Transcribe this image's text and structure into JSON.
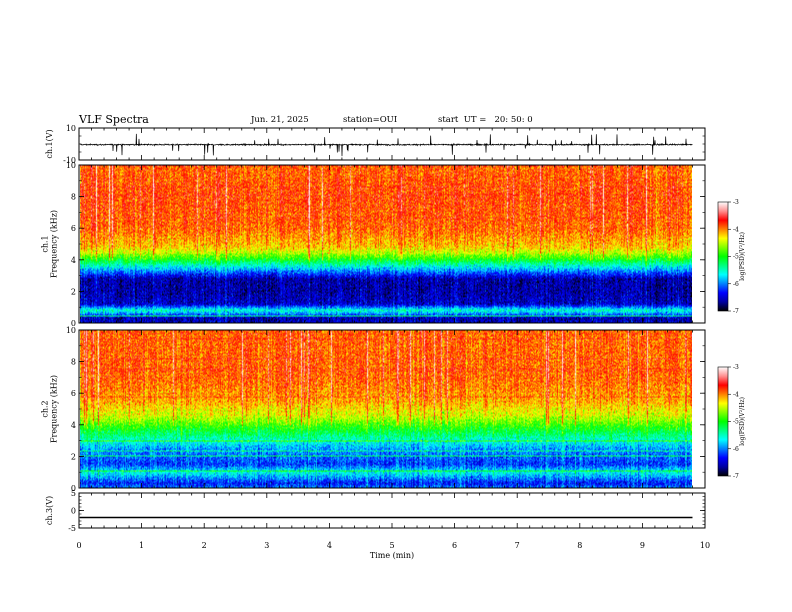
{
  "header": {
    "title": "VLF Spectra",
    "date": "Jun. 21, 2025",
    "station": "station=OUI",
    "start": "start  UT =   20: 50: 0"
  },
  "chart_data": [
    {
      "type": "line",
      "panel": "ch1-waveform",
      "ylabel": "ch.1(V)",
      "ylim": [
        -10,
        10
      ],
      "yticks": [
        "10",
        "-10"
      ],
      "xlim": [
        0,
        10
      ],
      "color": "#000000",
      "baseline_v": -0.4,
      "noise_v": 1.0,
      "end_min": 9.8
    },
    {
      "type": "heatmap",
      "panel": "ch1-spectrogram",
      "ylabel": "ch.1\nFrequency (kHz)",
      "ylim": [
        0,
        10
      ],
      "yticks": [
        "0",
        "2",
        "4",
        "6",
        "8",
        "10"
      ],
      "xlim": [
        0,
        10
      ],
      "data_end_min": 9.8,
      "colorbar": {
        "label": "log(PSD)(V²/Hz)",
        "range": [
          -7,
          -3
        ],
        "ticks": [
          "-3",
          "-4",
          "-5",
          "-6",
          "-7"
        ],
        "colors": [
          "#000000",
          "#0000a0",
          "#0000ff",
          "#0080ff",
          "#00ffff",
          "#00ff80",
          "#00ff00",
          "#80ff00",
          "#ffff00",
          "#ff8000",
          "#ff0000",
          "#ff9090",
          "#ffffff"
        ]
      },
      "profile_khz_log_psd": [
        [
          0,
          -6.5
        ],
        [
          0.3,
          -6.6
        ],
        [
          0.8,
          -5.5
        ],
        [
          1.2,
          -6.5
        ],
        [
          2.0,
          -6.6
        ],
        [
          2.8,
          -6.6
        ],
        [
          3.6,
          -5.6
        ],
        [
          4.2,
          -4.8
        ],
        [
          4.8,
          -4.2
        ],
        [
          6.0,
          -3.9
        ],
        [
          8.0,
          -3.8
        ],
        [
          10.0,
          -3.9
        ]
      ]
    },
    {
      "type": "heatmap",
      "panel": "ch2-spectrogram",
      "ylabel": "ch.2\nFrequency (kHz)",
      "ylim": [
        0,
        10
      ],
      "yticks": [
        "0",
        "2",
        "4",
        "6",
        "8",
        "10"
      ],
      "xlim": [
        0,
        10
      ],
      "data_end_min": 9.8,
      "colorbar": {
        "label": "log(PSD)(V²/Hz)",
        "range": [
          -7,
          -3
        ],
        "ticks": [
          "-3",
          "-4",
          "-5",
          "-6",
          "-7"
        ],
        "colors": [
          "#000000",
          "#0000a0",
          "#0000ff",
          "#0080ff",
          "#00ffff",
          "#00ff80",
          "#00ff00",
          "#80ff00",
          "#ffff00",
          "#ff8000",
          "#ff0000",
          "#ff9090",
          "#ffffff"
        ]
      },
      "profile_khz_log_psd": [
        [
          0,
          -6.0
        ],
        [
          0.3,
          -6.3
        ],
        [
          1.0,
          -5.6
        ],
        [
          1.5,
          -6.2
        ],
        [
          2.5,
          -5.9
        ],
        [
          3.5,
          -5.2
        ],
        [
          4.5,
          -4.5
        ],
        [
          5.5,
          -4.1
        ],
        [
          7.0,
          -3.9
        ],
        [
          10.0,
          -3.9
        ]
      ]
    },
    {
      "type": "line",
      "panel": "ch3-waveform",
      "ylabel": "ch.3(V)",
      "ylim": [
        -5,
        5
      ],
      "yticks": [
        "5",
        "0",
        "-5"
      ],
      "xlim": [
        0,
        10
      ],
      "xticks": [
        "0",
        "1",
        "2",
        "3",
        "4",
        "5",
        "6",
        "7",
        "8",
        "9",
        "10"
      ],
      "xlabel": "Time (min)",
      "color": "#000000",
      "baseline_v": -2.0,
      "end_min": 9.8
    }
  ]
}
